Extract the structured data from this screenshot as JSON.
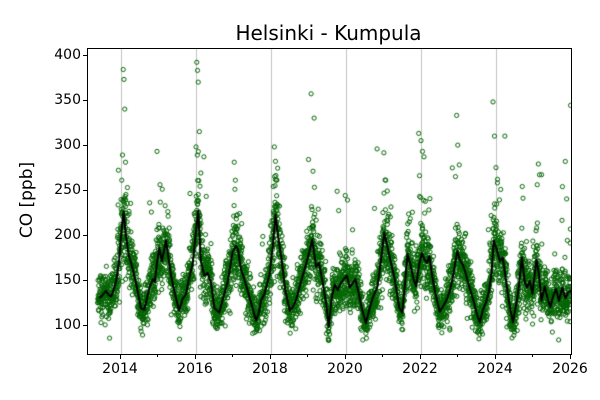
{
  "figure": {
    "background": "#ffffff"
  },
  "chart_data": {
    "type": "scatter",
    "title": "Helsinki - Kumpula",
    "xlabel": "",
    "ylabel": "CO [ppb]",
    "xlim": [
      2013.12,
      2026.0
    ],
    "ylim": [
      68.9,
      407.8
    ],
    "xticks": [
      2014,
      2016,
      2018,
      2020,
      2022,
      2024,
      2026
    ],
    "xtick_labels": [
      "2014",
      "2016",
      "2018",
      "2020",
      "2022",
      "2024",
      "2026"
    ],
    "xticks_minor": [
      2015,
      2017,
      2019,
      2021,
      2023,
      2025
    ],
    "yticks": [
      100,
      150,
      200,
      250,
      300,
      350,
      400
    ],
    "ytick_labels": [
      "100",
      "150",
      "200",
      "250",
      "300",
      "350",
      "400"
    ],
    "grid": {
      "axis": "x",
      "years": [
        2014,
        2016,
        2018,
        2020,
        2022,
        2024
      ],
      "color": "#b0b0b0",
      "width": 0.8
    },
    "marker": {
      "shape": "circle-open",
      "color": "#006400",
      "radius": 2.1,
      "stroke_width": 1.0
    },
    "trend_line": {
      "color": "#000000",
      "width": 2,
      "points": [
        [
          2013.42,
          131
        ],
        [
          2013.5,
          134
        ],
        [
          2013.6,
          139
        ],
        [
          2013.68,
          134
        ],
        [
          2013.74,
          133
        ],
        [
          2013.8,
          140
        ],
        [
          2013.87,
          150
        ],
        [
          2013.95,
          172
        ],
        [
          2014.0,
          200
        ],
        [
          2014.07,
          227
        ],
        [
          2014.12,
          205
        ],
        [
          2014.17,
          188
        ],
        [
          2014.21,
          178
        ],
        [
          2014.27,
          170
        ],
        [
          2014.33,
          160
        ],
        [
          2014.42,
          144
        ],
        [
          2014.53,
          120
        ],
        [
          2014.62,
          118
        ],
        [
          2014.7,
          132
        ],
        [
          2014.76,
          143
        ],
        [
          2014.85,
          152
        ],
        [
          2014.9,
          149
        ],
        [
          2014.96,
          170
        ],
        [
          2015.02,
          187
        ],
        [
          2015.09,
          172
        ],
        [
          2015.2,
          195
        ],
        [
          2015.33,
          157
        ],
        [
          2015.42,
          139
        ],
        [
          2015.55,
          117
        ],
        [
          2015.64,
          130
        ],
        [
          2015.73,
          135
        ],
        [
          2015.82,
          154
        ],
        [
          2015.91,
          169
        ],
        [
          2016.0,
          205
        ],
        [
          2016.06,
          228
        ],
        [
          2016.13,
          172
        ],
        [
          2016.22,
          156
        ],
        [
          2016.31,
          159
        ],
        [
          2016.4,
          148
        ],
        [
          2016.49,
          120
        ],
        [
          2016.62,
          115
        ],
        [
          2016.75,
          135
        ],
        [
          2016.84,
          148
        ],
        [
          2016.98,
          183
        ],
        [
          2017.07,
          189
        ],
        [
          2017.12,
          185
        ],
        [
          2017.2,
          163
        ],
        [
          2017.29,
          152
        ],
        [
          2017.42,
          133
        ],
        [
          2017.52,
          118
        ],
        [
          2017.6,
          106
        ],
        [
          2017.68,
          115
        ],
        [
          2017.73,
          128
        ],
        [
          2017.82,
          135
        ],
        [
          2017.96,
          157
        ],
        [
          2018.05,
          190
        ],
        [
          2018.12,
          224
        ],
        [
          2018.2,
          196
        ],
        [
          2018.28,
          175
        ],
        [
          2018.38,
          140
        ],
        [
          2018.5,
          117
        ],
        [
          2018.58,
          121
        ],
        [
          2018.67,
          129
        ],
        [
          2018.76,
          143
        ],
        [
          2018.84,
          155
        ],
        [
          2018.93,
          168
        ],
        [
          2019.02,
          182
        ],
        [
          2019.1,
          196
        ],
        [
          2019.2,
          166
        ],
        [
          2019.28,
          170
        ],
        [
          2019.38,
          148
        ],
        [
          2019.47,
          125
        ],
        [
          2019.54,
          99
        ],
        [
          2019.62,
          132
        ],
        [
          2019.7,
          146
        ],
        [
          2019.78,
          140
        ],
        [
          2019.86,
          148
        ],
        [
          2019.94,
          152
        ],
        [
          2020.02,
          156
        ],
        [
          2020.1,
          143
        ],
        [
          2020.17,
          147
        ],
        [
          2020.25,
          152
        ],
        [
          2020.33,
          138
        ],
        [
          2020.42,
          120
        ],
        [
          2020.53,
          103
        ],
        [
          2020.62,
          118
        ],
        [
          2020.71,
          131
        ],
        [
          2020.84,
          144
        ],
        [
          2020.93,
          172
        ],
        [
          2021.02,
          204
        ],
        [
          2021.12,
          185
        ],
        [
          2021.2,
          170
        ],
        [
          2021.3,
          152
        ],
        [
          2021.42,
          120
        ],
        [
          2021.5,
          115
        ],
        [
          2021.58,
          150
        ],
        [
          2021.64,
          180
        ],
        [
          2021.72,
          168
        ],
        [
          2021.8,
          152
        ],
        [
          2021.87,
          144
        ],
        [
          2021.95,
          168
        ],
        [
          2022.02,
          181
        ],
        [
          2022.09,
          174
        ],
        [
          2022.16,
          170
        ],
        [
          2022.22,
          178
        ],
        [
          2022.3,
          155
        ],
        [
          2022.4,
          133
        ],
        [
          2022.5,
          116
        ],
        [
          2022.58,
          121
        ],
        [
          2022.67,
          128
        ],
        [
          2022.76,
          138
        ],
        [
          2022.84,
          152
        ],
        [
          2022.91,
          170
        ],
        [
          2022.97,
          183
        ],
        [
          2023.05,
          172
        ],
        [
          2023.12,
          168
        ],
        [
          2023.2,
          157
        ],
        [
          2023.3,
          142
        ],
        [
          2023.4,
          128
        ],
        [
          2023.5,
          112
        ],
        [
          2023.57,
          104
        ],
        [
          2023.65,
          118
        ],
        [
          2023.73,
          126
        ],
        [
          2023.81,
          138
        ],
        [
          2023.88,
          158
        ],
        [
          2023.94,
          195
        ],
        [
          2024.02,
          185
        ],
        [
          2024.1,
          172
        ],
        [
          2024.18,
          176
        ],
        [
          2024.27,
          150
        ],
        [
          2024.35,
          126
        ],
        [
          2024.45,
          104
        ],
        [
          2024.53,
          122
        ],
        [
          2024.6,
          140
        ],
        [
          2024.69,
          176
        ],
        [
          2024.77,
          148
        ],
        [
          2024.83,
          143
        ],
        [
          2024.9,
          150
        ],
        [
          2024.97,
          136
        ],
        [
          2025.08,
          174
        ],
        [
          2025.15,
          156
        ],
        [
          2025.21,
          128
        ],
        [
          2025.3,
          144
        ],
        [
          2025.38,
          130
        ],
        [
          2025.45,
          121
        ],
        [
          2025.53,
          134
        ],
        [
          2025.6,
          141
        ],
        [
          2025.68,
          128
        ],
        [
          2025.77,
          143
        ],
        [
          2025.85,
          131
        ],
        [
          2025.92,
          137
        ],
        [
          2026.0,
          139
        ]
      ]
    },
    "scatter_gen": {
      "seed": 20130101,
      "start": 2013.38,
      "end": 2025.99,
      "points_per_year": 365,
      "base_sd": 9,
      "sd_slope": 0.13,
      "floor": 84,
      "cap": 350,
      "winter_frac_before": 0.3,
      "winter_frac_after": 0.75,
      "spike_prob": 0.025,
      "spike_min": 20,
      "spike_max": 80,
      "big_spike_prob": 0.004,
      "big_spike_min": 80,
      "big_spike_max": 160
    },
    "outliers": [
      [
        2014.06,
        385
      ],
      [
        2014.08,
        374
      ],
      [
        2014.1,
        341
      ],
      [
        2014.04,
        290
      ],
      [
        2014.12,
        282
      ],
      [
        2014.02,
        262
      ],
      [
        2014.96,
        294
      ],
      [
        2015.04,
        257
      ],
      [
        2015.1,
        252
      ],
      [
        2016.02,
        393
      ],
      [
        2016.04,
        384
      ],
      [
        2016.06,
        371
      ],
      [
        2016.09,
        316
      ],
      [
        2016.0,
        299
      ],
      [
        2016.21,
        288
      ],
      [
        2016.13,
        270
      ],
      [
        2017.02,
        282
      ],
      [
        2017.05,
        262
      ],
      [
        2018.09,
        299
      ],
      [
        2018.12,
        283
      ],
      [
        2018.15,
        262
      ],
      [
        2018.06,
        255
      ],
      [
        2019.07,
        358
      ],
      [
        2019.0,
        285
      ],
      [
        2019.12,
        272
      ],
      [
        2019.98,
        245
      ],
      [
        2020.04,
        240
      ],
      [
        2021.06,
        262
      ],
      [
        2021.1,
        250
      ],
      [
        2021.94,
        314
      ],
      [
        2022.0,
        306
      ],
      [
        2022.04,
        294
      ],
      [
        2022.08,
        288
      ],
      [
        2021.96,
        267
      ],
      [
        2022.95,
        334
      ],
      [
        2022.98,
        301
      ],
      [
        2023.02,
        279
      ],
      [
        2022.92,
        266
      ],
      [
        2023.92,
        349
      ],
      [
        2023.96,
        311
      ],
      [
        2024.0,
        276
      ],
      [
        2024.04,
        263
      ],
      [
        2024.7,
        255
      ],
      [
        2024.72,
        242
      ],
      [
        2025.13,
        280
      ],
      [
        2025.16,
        268
      ],
      [
        2025.1,
        257
      ]
    ]
  }
}
